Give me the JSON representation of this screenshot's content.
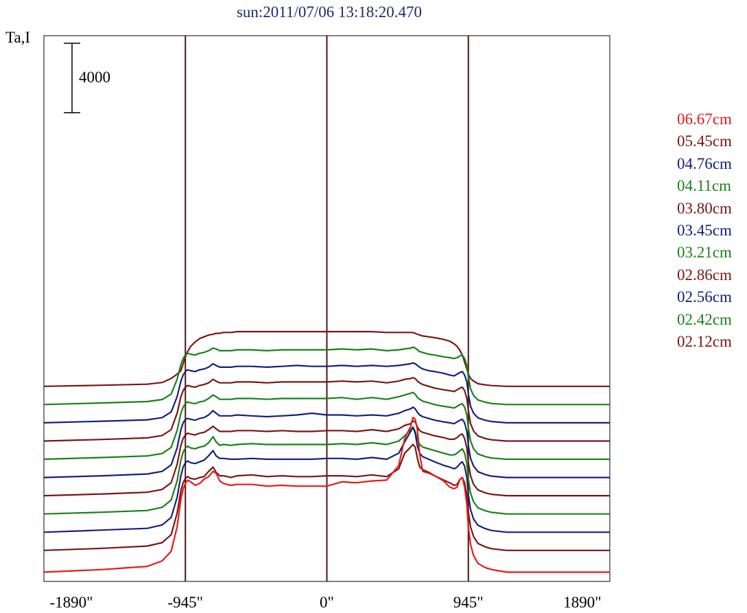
{
  "chart_data": {
    "type": "line",
    "title": "sun:2011/07/06 13:18:20.470",
    "ylabel": "Ta,I",
    "scale_bar_label": "4000",
    "scale_bar_value": 4000,
    "xlim": [
      -1890,
      1890
    ],
    "x_ticks": [
      "-1890\"",
      "-945\"",
      "0\"",
      "945\"",
      "1890\""
    ],
    "x_tick_values": [
      -1890,
      -945,
      0,
      945,
      1890
    ],
    "vlines": [
      -945,
      0,
      945
    ],
    "vline_color": "#4a1414",
    "x": [
      -1890,
      -1500,
      -1200,
      -1100,
      -1040,
      -1000,
      -975,
      -960,
      -945,
      -930,
      -910,
      -880,
      -850,
      -820,
      -790,
      -760,
      -740,
      -715,
      -690,
      -640,
      -600,
      -500,
      -400,
      -300,
      -200,
      -100,
      0,
      100,
      200,
      300,
      400,
      480,
      520,
      560,
      575,
      590,
      605,
      620,
      640,
      680,
      720,
      780,
      820,
      850,
      870,
      890,
      905,
      920,
      935,
      945,
      960,
      980,
      1010,
      1060,
      1100,
      1200,
      1300,
      1500,
      1700,
      1890
    ],
    "series": [
      {
        "name": "06.67cm",
        "color": "#e81818",
        "baseline": 100,
        "values": [
          0,
          150,
          330,
          650,
          1200,
          2600,
          4200,
          4800,
          5100,
          5300,
          5200,
          5000,
          5100,
          5350,
          5500,
          5800,
          5700,
          5250,
          5100,
          5000,
          5050,
          5050,
          4950,
          5000,
          4950,
          4950,
          4950,
          5200,
          5150,
          5250,
          5300,
          6150,
          7700,
          8400,
          8900,
          8800,
          8200,
          6800,
          5800,
          5700,
          5550,
          5250,
          4900,
          4800,
          4900,
          5350,
          5450,
          4900,
          3900,
          2600,
          1600,
          950,
          500,
          250,
          150,
          0,
          0,
          0,
          0,
          0
        ]
      },
      {
        "name": "05.45cm",
        "color": "#7a1414",
        "baseline": 1350,
        "values": [
          0,
          120,
          250,
          450,
          900,
          2150,
          3450,
          3900,
          4150,
          4250,
          4150,
          4100,
          4200,
          4250,
          4550,
          4800,
          4500,
          4300,
          4300,
          4200,
          4300,
          4350,
          4250,
          4300,
          4250,
          4250,
          4300,
          4300,
          4250,
          4350,
          4250,
          4700,
          5600,
          5950,
          6100,
          5950,
          5300,
          4800,
          4650,
          4500,
          4300,
          4050,
          3900,
          3750,
          3800,
          4100,
          4200,
          3900,
          3200,
          2200,
          1350,
          800,
          400,
          200,
          100,
          0,
          0,
          0,
          0,
          0
        ]
      },
      {
        "name": "04.76cm",
        "color": "#14207a",
        "baseline": 2400,
        "values": [
          0,
          120,
          220,
          420,
          850,
          2000,
          3250,
          3750,
          4000,
          4100,
          4000,
          3950,
          4050,
          4150,
          4400,
          4700,
          4400,
          4250,
          4250,
          4200,
          4200,
          4250,
          4200,
          4200,
          4200,
          4200,
          4250,
          4250,
          4200,
          4300,
          4200,
          4550,
          5200,
          5800,
          6050,
          5700,
          4950,
          4550,
          4350,
          4200,
          4050,
          3850,
          3750,
          3650,
          3750,
          3950,
          4050,
          3800,
          3150,
          2150,
          1300,
          750,
          400,
          200,
          100,
          0,
          0,
          0,
          0,
          0
        ]
      },
      {
        "name": "04.11cm",
        "color": "#168216",
        "baseline": 3450,
        "values": [
          0,
          100,
          200,
          380,
          800,
          1900,
          3100,
          3550,
          3800,
          3900,
          3800,
          3750,
          3850,
          3900,
          4100,
          4450,
          4150,
          3950,
          4000,
          3950,
          4000,
          4050,
          4000,
          4000,
          4000,
          4000,
          4000,
          4050,
          4000,
          4100,
          4000,
          4200,
          4500,
          4850,
          5000,
          4750,
          4300,
          4000,
          3850,
          3750,
          3650,
          3500,
          3400,
          3400,
          3500,
          3650,
          3750,
          3500,
          2900,
          2000,
          1200,
          700,
          350,
          180,
          90,
          0,
          0,
          0,
          0,
          0
        ]
      },
      {
        "name": "03.80cm",
        "color": "#7a1414",
        "baseline": 4500,
        "values": [
          0,
          100,
          200,
          360,
          750,
          1800,
          2900,
          3300,
          3500,
          3600,
          3550,
          3500,
          3600,
          3650,
          3800,
          4000,
          3850,
          3700,
          3700,
          3700,
          3750,
          3750,
          3700,
          3750,
          3700,
          3700,
          3750,
          3750,
          3700,
          3800,
          3700,
          3850,
          4050,
          4150,
          4300,
          4250,
          3950,
          3750,
          3650,
          3550,
          3450,
          3350,
          3250,
          3250,
          3350,
          3500,
          3550,
          3300,
          2750,
          1900,
          1150,
          650,
          330,
          160,
          80,
          0,
          0,
          0,
          0,
          0
        ]
      },
      {
        "name": "03.45cm",
        "color": "#14207a",
        "baseline": 5550,
        "values": [
          0,
          100,
          200,
          350,
          720,
          1700,
          2750,
          3150,
          3350,
          3400,
          3350,
          3300,
          3400,
          3450,
          3600,
          3850,
          3700,
          3550,
          3550,
          3550,
          3600,
          3550,
          3500,
          3550,
          3600,
          3700,
          3600,
          3600,
          3550,
          3600,
          3550,
          3700,
          3850,
          3950,
          4050,
          3950,
          3750,
          3600,
          3500,
          3400,
          3300,
          3200,
          3150,
          3100,
          3200,
          3300,
          3350,
          3150,
          2650,
          1850,
          1100,
          650,
          330,
          160,
          80,
          0,
          0,
          0,
          0,
          0
        ]
      },
      {
        "name": "03.21cm",
        "color": "#168216",
        "baseline": 6600,
        "values": [
          0,
          100,
          190,
          330,
          680,
          1650,
          2650,
          3000,
          3200,
          3300,
          3250,
          3200,
          3300,
          3350,
          3500,
          3700,
          3600,
          3450,
          3450,
          3450,
          3500,
          3500,
          3450,
          3500,
          3500,
          3500,
          3500,
          3550,
          3450,
          3550,
          3450,
          3600,
          3700,
          3800,
          3850,
          3750,
          3550,
          3450,
          3350,
          3250,
          3150,
          3050,
          3000,
          2950,
          3050,
          3150,
          3200,
          3000,
          2550,
          1800,
          1050,
          600,
          300,
          150,
          70,
          0,
          0,
          0,
          0,
          0
        ]
      },
      {
        "name": "02.86cm",
        "color": "#7a1414",
        "baseline": 7650,
        "values": [
          0,
          90,
          180,
          320,
          650,
          1600,
          2550,
          2900,
          3100,
          3200,
          3150,
          3100,
          3200,
          3250,
          3350,
          3550,
          3450,
          3350,
          3350,
          3350,
          3400,
          3400,
          3350,
          3400,
          3400,
          3400,
          3400,
          3450,
          3400,
          3450,
          3350,
          3450,
          3550,
          3600,
          3650,
          3600,
          3450,
          3350,
          3250,
          3150,
          3050,
          2950,
          2900,
          2850,
          2950,
          3050,
          3100,
          2900,
          2450,
          1750,
          1000,
          580,
          290,
          140,
          70,
          0,
          0,
          0,
          0,
          0
        ]
      },
      {
        "name": "02.56cm",
        "color": "#14207a",
        "baseline": 8700,
        "values": [
          0,
          90,
          170,
          300,
          620,
          1500,
          2400,
          2750,
          2950,
          3050,
          3000,
          2950,
          3050,
          3100,
          3200,
          3400,
          3300,
          3200,
          3200,
          3200,
          3250,
          3250,
          3200,
          3250,
          3300,
          3250,
          3250,
          3300,
          3250,
          3300,
          3250,
          3300,
          3350,
          3400,
          3450,
          3400,
          3300,
          3200,
          3100,
          3000,
          2950,
          2850,
          2750,
          2700,
          2800,
          2900,
          2950,
          2750,
          2350,
          1650,
          950,
          550,
          280,
          140,
          70,
          0,
          0,
          0,
          0,
          0
        ]
      },
      {
        "name": "02.42cm",
        "color": "#168216",
        "baseline": 9750,
        "values": [
          0,
          90,
          170,
          290,
          600,
          1450,
          2300,
          2650,
          2850,
          2950,
          2900,
          2850,
          2950,
          3000,
          3100,
          3250,
          3200,
          3100,
          3100,
          3100,
          3150,
          3150,
          3100,
          3150,
          3150,
          3150,
          3150,
          3200,
          3150,
          3200,
          3100,
          3150,
          3200,
          3250,
          3300,
          3250,
          3150,
          3050,
          3000,
          2900,
          2850,
          2750,
          2700,
          2650,
          2700,
          2800,
          2850,
          2650,
          2250,
          1600,
          900,
          520,
          260,
          130,
          60,
          0,
          0,
          0,
          0,
          0
        ]
      },
      {
        "name": "02.12cm",
        "color": "#7a1414",
        "baseline": 10800,
        "values": [
          0,
          60,
          120,
          220,
          450,
          700,
          900,
          1300,
          1700,
          2000,
          2300,
          2550,
          2750,
          2850,
          2950,
          3000,
          3050,
          3050,
          3100,
          3100,
          3150,
          3150,
          3150,
          3150,
          3150,
          3150,
          3150,
          3150,
          3150,
          3150,
          3100,
          3100,
          3100,
          3100,
          3100,
          3050,
          3000,
          2950,
          2900,
          2850,
          2800,
          2700,
          2600,
          2450,
          2300,
          2050,
          1800,
          1400,
          1000,
          700,
          450,
          300,
          150,
          80,
          40,
          0,
          0,
          0,
          0,
          0
        ]
      }
    ]
  }
}
